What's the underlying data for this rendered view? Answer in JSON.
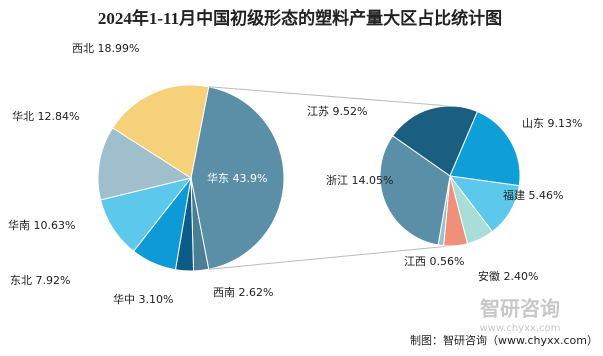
{
  "chart_data": {
    "type": "pie",
    "title": "2024年1-11月中国初级形态的塑料产量大区占比统计图",
    "categories": [
      "华东",
      "西南",
      "华中",
      "东北",
      "华南",
      "华北",
      "西北"
    ],
    "values": [
      43.9,
      2.62,
      3.1,
      7.92,
      10.63,
      12.84,
      18.99
    ],
    "value_labels": [
      "43.9%",
      "2.62%",
      "3.10%",
      "7.92%",
      "10.63%",
      "12.84%",
      "18.99%"
    ],
    "colors": [
      "#5b8fa8",
      "#4a7f96",
      "#0b5c86",
      "#0d9ad6",
      "#5bc8ec",
      "#a0bfcc",
      "#f5d27a"
    ],
    "breakdown": {
      "categories": [
        "江苏",
        "山东",
        "福建",
        null,
        "安徽",
        "江西",
        "浙江"
      ],
      "values": [
        9.52,
        9.13,
        5.46,
        2.78,
        2.4,
        0.56,
        14.05
      ],
      "value_labels": [
        "9.52%",
        "9.13%",
        "5.46%",
        null,
        "2.40%",
        "0.56%",
        "14.05%"
      ],
      "colors": [
        "#1a5f7f",
        "#0f9fd8",
        "#5bc8ec",
        "#a8ddd8",
        "#f08f7a",
        "#a0bfcc",
        "#5b8fa8"
      ]
    },
    "source": "制图：智研咨询（www.chyxx.com）",
    "watermark": "智研咨询",
    "watermark_url": "www.chyxx.com"
  }
}
